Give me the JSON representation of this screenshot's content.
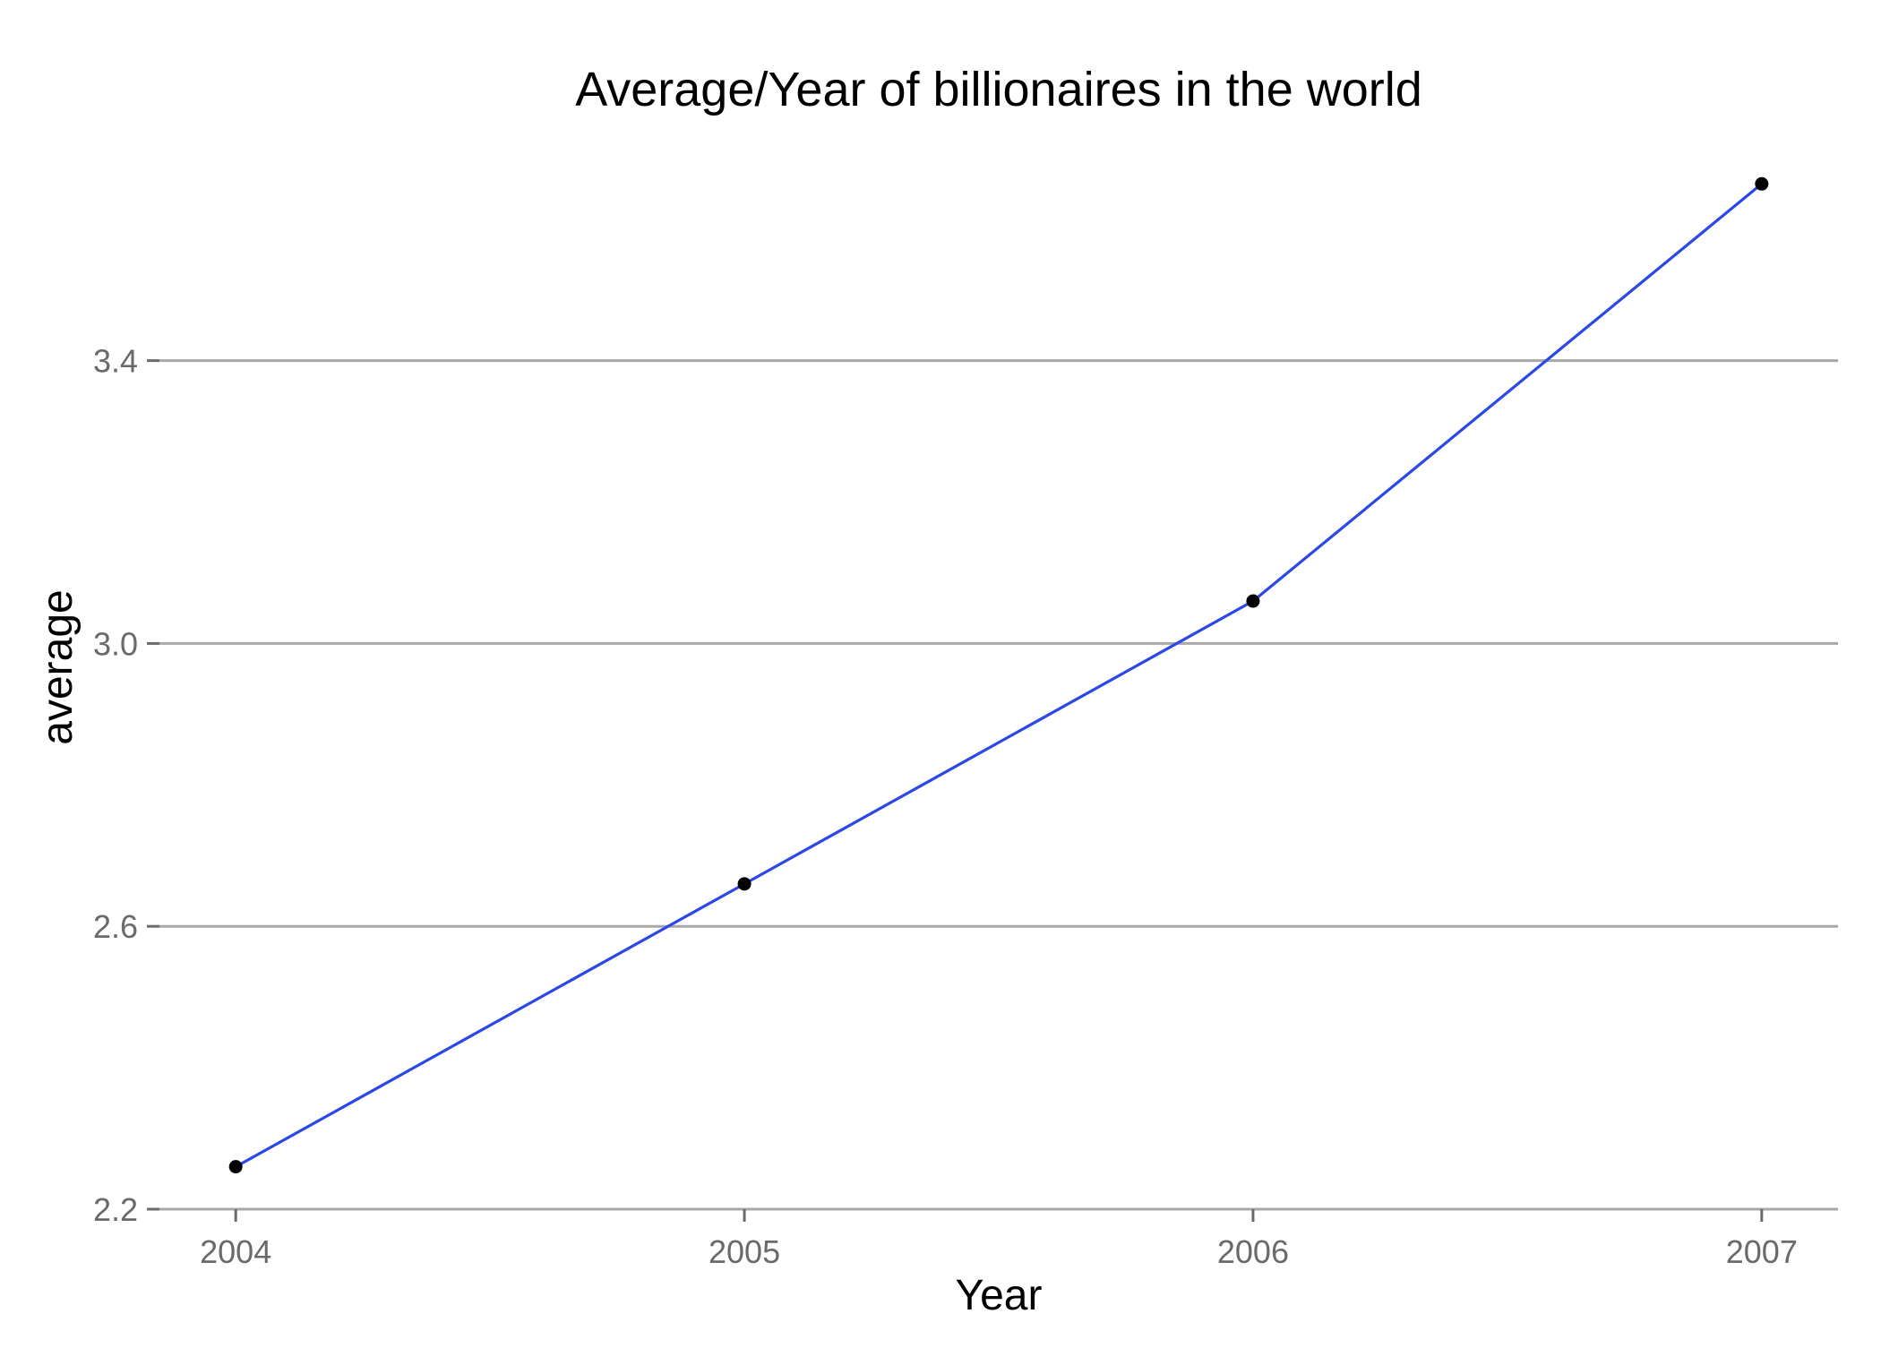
{
  "chart_data": {
    "type": "line",
    "title": "Average/Year of billionaires in the world",
    "xlabel": "Year",
    "ylabel": "average",
    "x": [
      2004,
      2005,
      2006,
      2007
    ],
    "x_tick_labels": [
      "2004",
      "2005",
      "2006",
      "2007"
    ],
    "y_ticks": [
      2.2,
      2.6,
      3.0,
      3.4
    ],
    "y_tick_labels": [
      "2.2",
      "2.6",
      "3.0",
      "3.4"
    ],
    "series": [
      {
        "values": [
          2.26,
          2.66,
          3.06,
          3.65
        ]
      }
    ],
    "xlim": [
      2003.85,
      2007.15
    ],
    "ylim": [
      2.2,
      3.72
    ],
    "grid": "horizontal",
    "legend": "none",
    "colors": {
      "line": "#2b48e6",
      "points": "#000000",
      "grid": "#a8a8a8",
      "tick_labels": "#6a6a6a"
    }
  }
}
